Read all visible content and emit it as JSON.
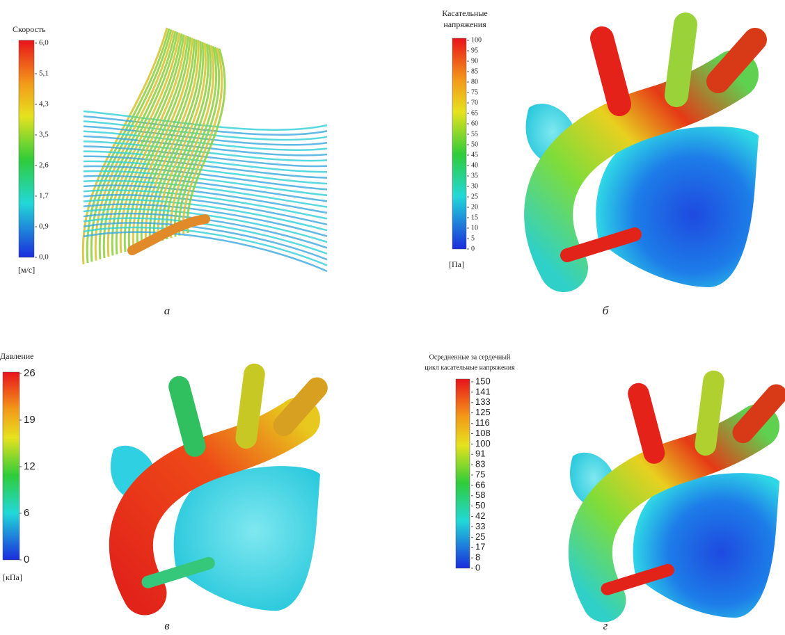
{
  "panels": [
    {
      "label": "а",
      "legend": {
        "title": [
          "Скорость"
        ],
        "ticks": [
          "6,0",
          "5,1",
          "4,3",
          "3,5",
          "2,6",
          "1,7",
          "0,9",
          "0,0"
        ],
        "unit": "[м/с]"
      }
    },
    {
      "label": "б",
      "legend": {
        "title": [
          "Касательные",
          "напряжения"
        ],
        "ticks": [
          "100",
          "95",
          "90",
          "85",
          "80",
          "75",
          "70",
          "65",
          "60",
          "55",
          "50",
          "45",
          "40",
          "35",
          "30",
          "25",
          "20",
          "15",
          "10",
          "5",
          "0"
        ],
        "unit": "[Па]"
      }
    },
    {
      "label": "в",
      "legend": {
        "title": [
          "Давление"
        ],
        "ticks": [
          "26",
          "19",
          "12",
          "6",
          "0"
        ],
        "unit": "[кПа]"
      }
    },
    {
      "label": "г",
      "legend": {
        "title": [
          "Осредненные за сердечный",
          "цикл касательные напряжения"
        ],
        "ticks": [
          "150",
          "141",
          "133",
          "125",
          "116",
          "108",
          "100",
          "91",
          "83",
          "75",
          "66",
          "58",
          "50",
          "42",
          "33",
          "25",
          "17",
          "8",
          "0"
        ]
      }
    }
  ]
}
